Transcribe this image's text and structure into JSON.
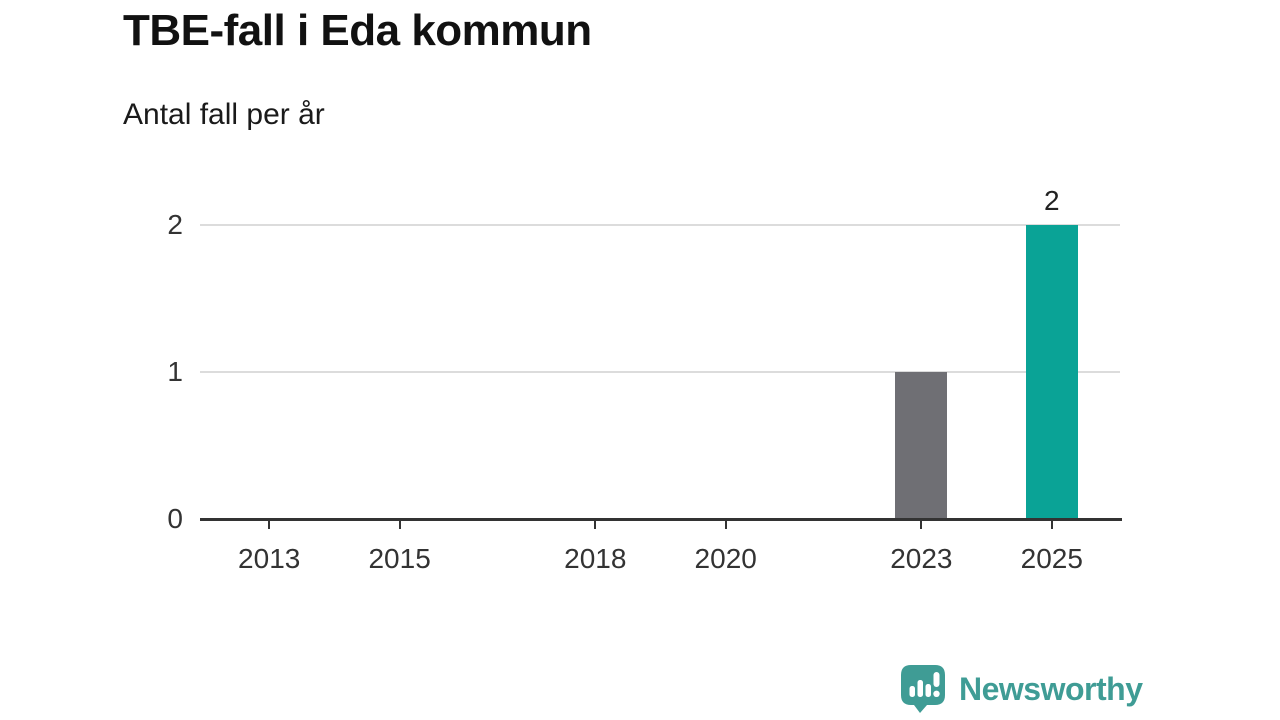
{
  "chart_data": {
    "type": "bar",
    "title": "TBE-fall i Eda kommun",
    "subtitle": "Antal fall per år",
    "xlabel": "",
    "ylabel": "",
    "x": [
      2023,
      2025
    ],
    "values": [
      1,
      2
    ],
    "bar_colors": [
      "#6f6f74",
      "#0aa396"
    ],
    "value_labels": [
      "",
      "2"
    ],
    "x_axis": {
      "ticks": [
        "2013",
        "2015",
        "2018",
        "2020",
        "2023",
        "2025"
      ],
      "domain": [
        2012,
        2026
      ]
    },
    "y_axis": {
      "ticks": [
        0,
        1,
        2
      ],
      "lim": [
        0,
        2
      ]
    },
    "grid": "horizontal-light",
    "legend": "none",
    "colors": {
      "grid": "#dcdcdc",
      "axis": "#333333",
      "tick_label": "#333333",
      "value_label": "#222222",
      "highlight_bar": "#0aa396",
      "default_bar": "#6f6f74"
    }
  },
  "footer": {
    "brand": "Newsworthy",
    "brand_color": "#3f9c95",
    "logo_icon": "newsworthy-speech-bubble-bar-chart-icon"
  }
}
